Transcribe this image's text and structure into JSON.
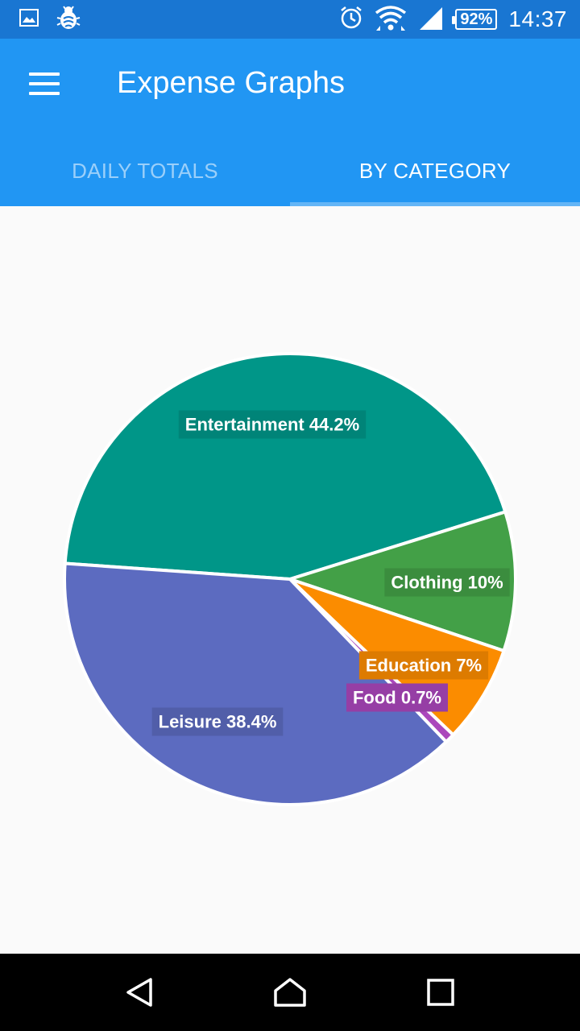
{
  "status_bar": {
    "time": "14:37",
    "battery": "92%",
    "icons": [
      "image-icon",
      "bug-icon",
      "alarm-icon",
      "wifi-icon",
      "signal-icon",
      "battery-icon"
    ]
  },
  "app_bar": {
    "title": "Expense Graphs"
  },
  "tabs": [
    {
      "label": "DAILY TOTALS",
      "active": false
    },
    {
      "label": "BY CATEGORY",
      "active": true
    }
  ],
  "chart_data": {
    "type": "pie",
    "title": "",
    "slices": [
      {
        "label": "Entertainment",
        "value": 44.2,
        "color": "#009688",
        "text": "Entertainment 44.2%"
      },
      {
        "label": "Clothing",
        "value": 10,
        "color": "#43a047",
        "text": "Clothing 10%"
      },
      {
        "label": "Education",
        "value": 7,
        "color": "#fb8c00",
        "text": "Education 7%"
      },
      {
        "label": "Food",
        "value": 0.7,
        "color": "#ab47bc",
        "text": "Food 0.7%"
      },
      {
        "label": "Leisure",
        "value": 38.4,
        "color": "#5c6bc0",
        "text": "Leisure 38.4%"
      }
    ]
  },
  "nav_bar": {
    "icons": [
      "back-icon",
      "home-icon",
      "recents-icon"
    ]
  }
}
